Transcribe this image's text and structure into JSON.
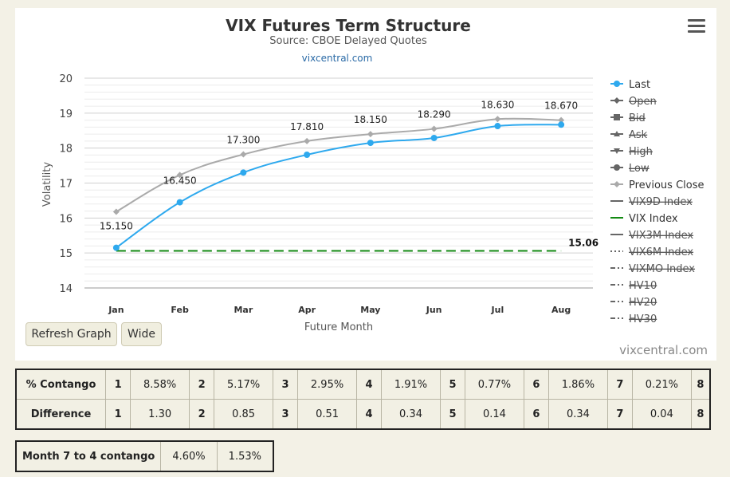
{
  "chart": {
    "title": "VIX Futures Term Structure",
    "subtitle": "Source: CBOE Delayed Quotes",
    "credit_top": "vixcentral.com",
    "credit_bottom": "vixcentral.com",
    "menu_icon": "hamburger-menu-icon"
  },
  "buttons": {
    "refresh": "Refresh Graph",
    "wide": "Wide"
  },
  "chart_data": {
    "type": "line",
    "xlabel": "Future Month",
    "ylabel": "Volatility",
    "categories": [
      "Jan",
      "Feb",
      "Mar",
      "Apr",
      "May",
      "Jun",
      "Jul",
      "Aug"
    ],
    "ylim": [
      14,
      20
    ],
    "yticks": [
      14,
      15,
      16,
      17,
      18,
      19,
      20
    ],
    "grid": true,
    "legend_position": "right",
    "series": [
      {
        "name": "Last",
        "color": "#2ea9ee",
        "marker": "circle",
        "values": [
          15.15,
          16.45,
          17.3,
          17.81,
          18.15,
          18.29,
          18.63,
          18.67
        ],
        "labels": [
          "15.150",
          "16.450",
          "17.300",
          "17.810",
          "18.150",
          "18.290",
          "18.630",
          "18.670"
        ],
        "visible": true
      },
      {
        "name": "Previous Close",
        "color": "#aaaaaa",
        "marker": "diamond",
        "values": [
          16.18,
          17.23,
          17.82,
          18.2,
          18.4,
          18.55,
          18.83,
          18.8
        ],
        "visible": true
      },
      {
        "name": "VIX Index",
        "color": "#138a13",
        "dash": "dashed",
        "value": 15.06,
        "label": "15.06",
        "visible": true
      }
    ],
    "legend": [
      {
        "name": "Last",
        "symbol": "circle",
        "color": "#2ea9ee",
        "line": "solid",
        "visible": true
      },
      {
        "name": "Open",
        "symbol": "diamond",
        "color": "#666666",
        "line": "solid",
        "visible": false
      },
      {
        "name": "Bid",
        "symbol": "square",
        "color": "#666666",
        "line": "solid",
        "visible": false
      },
      {
        "name": "Ask",
        "symbol": "triangle",
        "color": "#666666",
        "line": "solid",
        "visible": false
      },
      {
        "name": "High",
        "symbol": "triangle-down",
        "color": "#666666",
        "line": "solid",
        "visible": false
      },
      {
        "name": "Low",
        "symbol": "circle",
        "color": "#666666",
        "line": "solid",
        "visible": false
      },
      {
        "name": "Previous Close",
        "symbol": "diamond",
        "color": "#aaaaaa",
        "line": "solid",
        "visible": true
      },
      {
        "name": "VIX9D Index",
        "symbol": "none",
        "color": "#666666",
        "line": "solid",
        "visible": false
      },
      {
        "name": "VIX Index",
        "symbol": "none",
        "color": "#138a13",
        "line": "solid",
        "visible": true
      },
      {
        "name": "VIX3M Index",
        "symbol": "none",
        "color": "#666666",
        "line": "solid",
        "visible": false
      },
      {
        "name": "VIX6M Index",
        "symbol": "none",
        "color": "#666666",
        "line": "dotted",
        "visible": false
      },
      {
        "name": "VIXMO Index",
        "symbol": "none",
        "color": "#666666",
        "line": "dashdot",
        "visible": false
      },
      {
        "name": "HV10",
        "symbol": "none",
        "color": "#666666",
        "line": "dashdot",
        "visible": false
      },
      {
        "name": "HV20",
        "symbol": "none",
        "color": "#666666",
        "line": "dashdot",
        "visible": false
      },
      {
        "name": "HV30",
        "symbol": "none",
        "color": "#666666",
        "line": "dashdot",
        "visible": false
      }
    ]
  },
  "contango_table": {
    "rows": [
      {
        "label": "% Contango",
        "cells": [
          "1",
          "8.58%",
          "2",
          "5.17%",
          "3",
          "2.95%",
          "4",
          "1.91%",
          "5",
          "0.77%",
          "6",
          "1.86%",
          "7",
          "0.21%",
          "8"
        ]
      },
      {
        "label": "Difference",
        "cells": [
          "1",
          "1.30",
          "2",
          "0.85",
          "3",
          "0.51",
          "4",
          "0.34",
          "5",
          "0.14",
          "6",
          "0.34",
          "7",
          "0.04",
          "8"
        ]
      }
    ]
  },
  "month74": {
    "label": "Month 7 to 4 contango",
    "value1": "4.60%",
    "value2": "1.53%"
  }
}
